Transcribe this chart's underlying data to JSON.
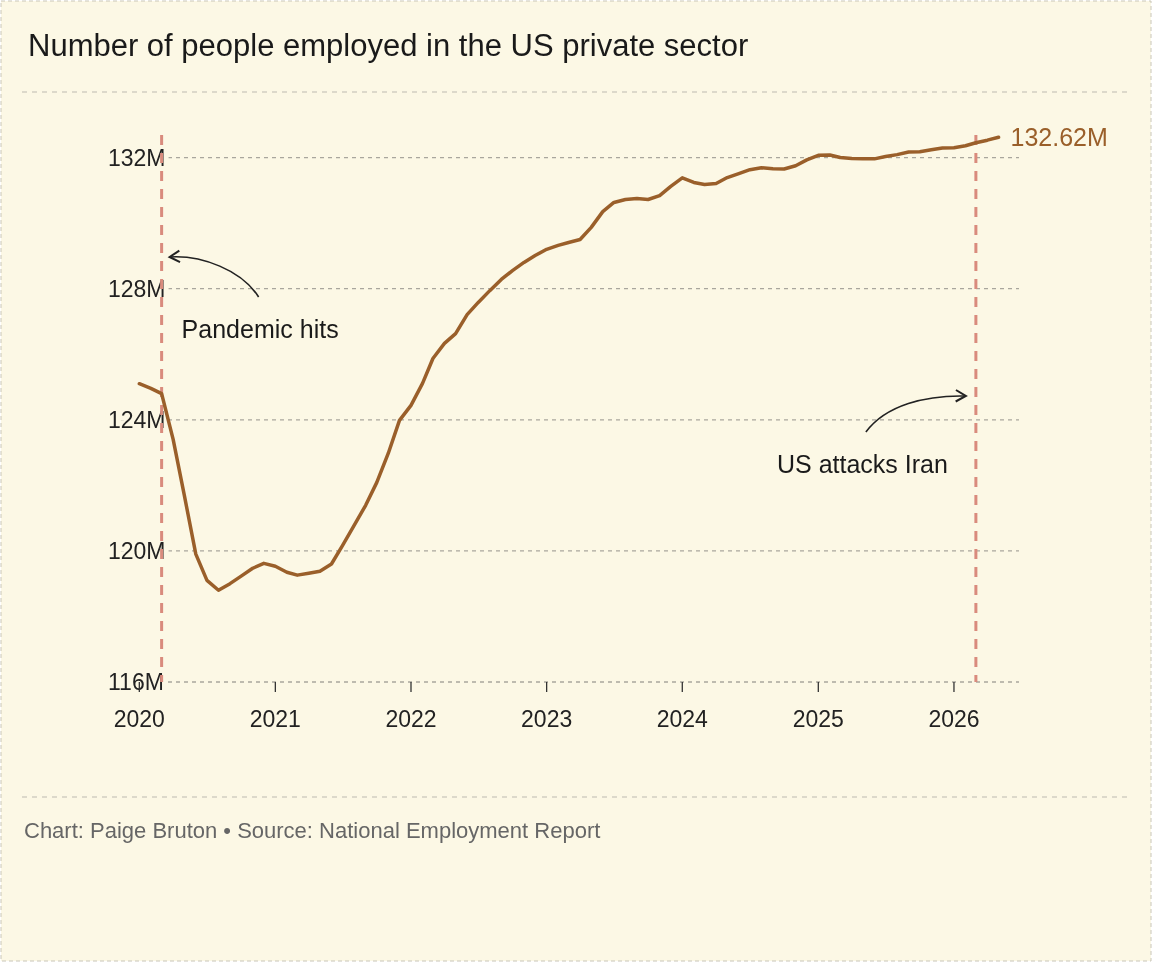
{
  "chart_data": {
    "type": "line",
    "title": "Number of people employed in the US private sector",
    "x": [
      "2020-01",
      "2020-02",
      "2020-03",
      "2020-04",
      "2020-05",
      "2020-06",
      "2020-07",
      "2020-08",
      "2020-09",
      "2020-10",
      "2020-11",
      "2020-12",
      "2021-01",
      "2021-02",
      "2021-03",
      "2021-04",
      "2021-05",
      "2021-06",
      "2021-07",
      "2021-08",
      "2021-09",
      "2021-10",
      "2021-11",
      "2021-12",
      "2022-01",
      "2022-02",
      "2022-03",
      "2022-04",
      "2022-05",
      "2022-06",
      "2022-07",
      "2022-08",
      "2022-09",
      "2022-10",
      "2022-11",
      "2022-12",
      "2023-01",
      "2023-02",
      "2023-03",
      "2023-04",
      "2023-05",
      "2023-06",
      "2023-07",
      "2023-08",
      "2023-09",
      "2023-10",
      "2023-11",
      "2023-12",
      "2024-01",
      "2024-02",
      "2024-03",
      "2024-04",
      "2024-05",
      "2024-06",
      "2024-07",
      "2024-08",
      "2024-09",
      "2024-10",
      "2024-11",
      "2024-12",
      "2025-01",
      "2025-02",
      "2025-03",
      "2025-04",
      "2025-05",
      "2025-06",
      "2025-07",
      "2025-08",
      "2025-09",
      "2025-10",
      "2025-11",
      "2025-12",
      "2026-01",
      "2026-02",
      "2026-03",
      "2026-04",
      "2026-05"
    ],
    "series": [
      {
        "color": "#9a5f2a",
        "values": [
          125.1,
          124.96,
          124.8,
          123.4,
          121.7,
          119.9,
          119.1,
          118.8,
          119.0,
          119.23,
          119.47,
          119.62,
          119.53,
          119.35,
          119.26,
          119.32,
          119.38,
          119.6,
          120.17,
          120.78,
          121.39,
          122.09,
          122.98,
          123.98,
          124.44,
          125.11,
          125.87,
          126.33,
          126.63,
          127.21,
          127.58,
          127.94,
          128.28,
          128.55,
          128.8,
          129.01,
          129.2,
          129.32,
          129.41,
          129.5,
          129.87,
          130.35,
          130.63,
          130.72,
          130.75,
          130.72,
          130.84,
          131.12,
          131.38,
          131.24,
          131.18,
          131.21,
          131.39,
          131.51,
          131.63,
          131.69,
          131.66,
          131.65,
          131.75,
          131.93,
          132.07,
          132.08,
          132.0,
          131.97,
          131.96,
          131.96,
          132.03,
          132.09,
          132.17,
          132.18,
          132.24,
          132.29,
          132.3,
          132.36,
          132.45,
          132.53,
          132.62
        ]
      }
    ],
    "xlim": [
      "2019-11-10",
      "2026-06-25"
    ],
    "xticks": [
      "2020",
      "2021",
      "2022",
      "2023",
      "2024",
      "2025",
      "2026"
    ],
    "ylim": [
      116,
      134
    ],
    "yticks": [
      {
        "value": 116,
        "label": "116M"
      },
      {
        "value": 120,
        "label": "120M"
      },
      {
        "value": 124,
        "label": "124M"
      },
      {
        "value": 128,
        "label": "128M"
      },
      {
        "value": 132,
        "label": "132M"
      }
    ],
    "grid": "y",
    "line_style": "solid",
    "ref_lines": [
      {
        "axis": "x",
        "value": "2020-03",
        "label": "Pandemic hits",
        "color": "#d98b7d",
        "line_style": "dashed"
      },
      {
        "axis": "x",
        "value": "2026-03",
        "label": "US attacks Iran",
        "color": "#d98b7d",
        "line_style": "dashed"
      }
    ],
    "annotations": [
      {
        "text": "132.62M",
        "x": "2026-05",
        "y": 132.62
      },
      "Chart: Paige Bruton • Source: National Employment Report"
    ]
  }
}
